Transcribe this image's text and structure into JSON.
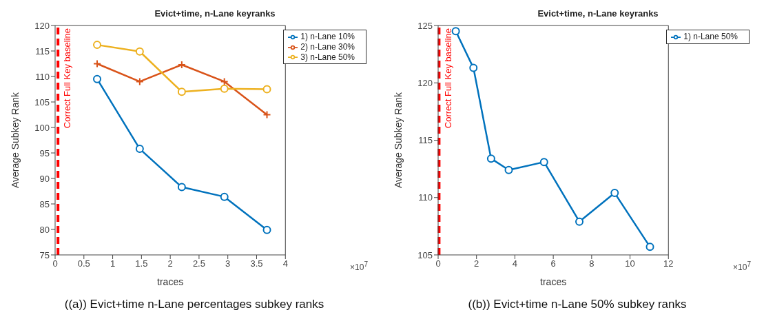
{
  "chart_data": [
    {
      "type": "line",
      "title": "Evict+time, n-Lane keyranks",
      "xlabel": "traces",
      "ylabel": "Average Subkey Rank",
      "x": [
        0.73,
        1.47,
        2.2,
        2.94,
        3.68
      ],
      "xlim": [
        0,
        4
      ],
      "xticks": [
        0,
        0.5,
        1,
        1.5,
        2,
        2.5,
        3,
        3.5,
        4
      ],
      "ylim": [
        75,
        120
      ],
      "yticks": [
        75,
        80,
        85,
        90,
        95,
        100,
        105,
        110,
        115,
        120
      ],
      "grid": false,
      "legend": "top right",
      "line_style": "solid",
      "series": [
        {
          "name": "1) n-Lane 10%",
          "color": "#0072bd",
          "marker": "circle",
          "values": [
            109.5,
            95.8,
            88.3,
            86.4,
            79.9
          ]
        },
        {
          "name": "2) n-Lane 30%",
          "color": "#d95319",
          "marker": "cross",
          "values": [
            112.5,
            109,
            112.3,
            109,
            102.5
          ]
        },
        {
          "name": "3) n-Lane 50%",
          "color": "#edb120",
          "marker": "circle",
          "values": [
            116.2,
            114.9,
            107,
            107.6,
            107.5
          ]
        }
      ],
      "ref_lines": [
        {
          "axis": "x",
          "value": 0.05,
          "label": "Correct Full Key baseline",
          "color": "#ff0000",
          "line_style": "dashed"
        }
      ],
      "annotations": [
        "×10$^{7}$",
        "((a)) Evict+time n-Lane percentages subkey ranks"
      ]
    },
    {
      "type": "line",
      "title": "Evict+time, n-Lane keyranks",
      "xlabel": "traces",
      "ylabel": "Average Subkey Rank",
      "x": [
        0.92,
        1.84,
        2.76,
        3.68,
        5.52,
        7.36,
        9.2,
        11.04
      ],
      "xlim": [
        0,
        12
      ],
      "xticks": [
        0,
        2,
        4,
        6,
        8,
        10,
        12
      ],
      "ylim": [
        105,
        125
      ],
      "yticks": [
        105,
        110,
        115,
        120,
        125
      ],
      "grid": false,
      "legend": "top right",
      "line_style": "solid",
      "series": [
        {
          "name": "1) n-Lane 50%",
          "color": "#0072bd",
          "marker": "circle",
          "values": [
            124.5,
            121.3,
            113.4,
            112.4,
            113.1,
            107.9,
            110.4,
            105.7
          ]
        }
      ],
      "ref_lines": [
        {
          "axis": "x",
          "value": 0.05,
          "label": "Correct Full Key baseline",
          "color": "#ff0000",
          "line_style": "dashed"
        }
      ],
      "annotations": [
        "×10$^{7}$",
        "((b)) Evict+time n-Lane 50% subkey ranks"
      ]
    }
  ]
}
